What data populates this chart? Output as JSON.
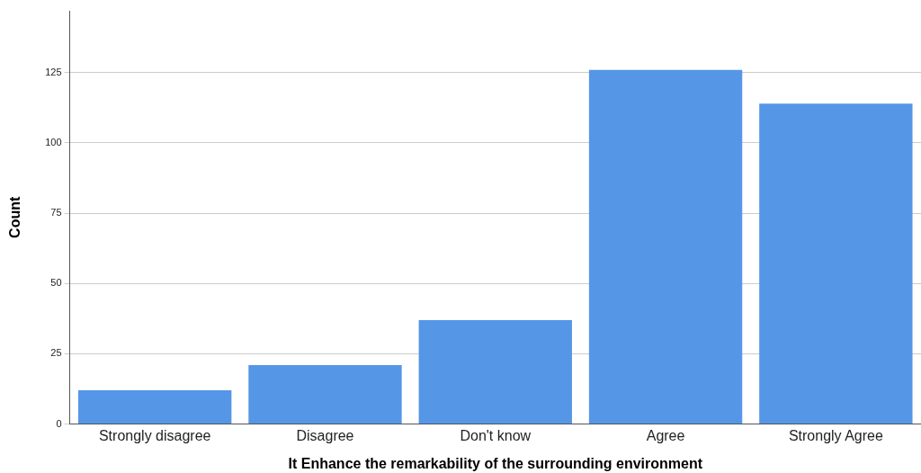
{
  "chart_data": {
    "type": "bar",
    "xlabel": "It Enhance the remarkability of the surrounding environment",
    "ylabel": "Count",
    "categories": [
      "Strongly disagree",
      "Disagree",
      "Don't know",
      "Agree",
      "Strongly Agree"
    ],
    "values": [
      12,
      21,
      37,
      126,
      114
    ],
    "color": "#5596e6",
    "ylim": [
      0,
      147
    ],
    "yticks": [
      0,
      25,
      50,
      75,
      100,
      125
    ],
    "grid": "y",
    "legend": false
  }
}
